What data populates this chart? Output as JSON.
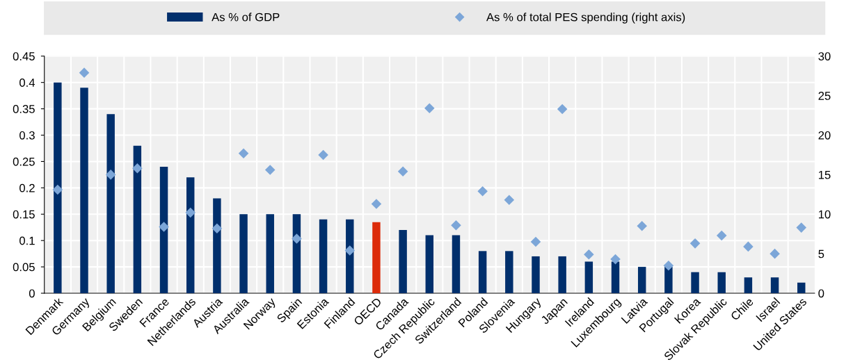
{
  "chart_data": {
    "type": "bar",
    "categories": [
      "Denmark",
      "Germany",
      "Belgium",
      "Sweden",
      "France",
      "Netherlands",
      "Austria",
      "Australia",
      "Norway",
      "Spain",
      "Estonia",
      "Finland",
      "OECD",
      "Canada",
      "Czech Republic",
      "Switzerland",
      "Poland",
      "Slovenia",
      "Hungary",
      "Japan",
      "Ireland",
      "Luxembourg",
      "Latvia",
      "Portugal",
      "Korea",
      "Slovak Republic",
      "Chile",
      "Israel",
      "United States"
    ],
    "series": [
      {
        "name": "As % of GDP",
        "color": "#002f6c",
        "colors": [
          "#002f6c",
          "#002f6c",
          "#002f6c",
          "#002f6c",
          "#002f6c",
          "#002f6c",
          "#002f6c",
          "#002f6c",
          "#002f6c",
          "#002f6c",
          "#002f6c",
          "#002f6c",
          "#dc2b0a",
          "#002f6c",
          "#002f6c",
          "#002f6c",
          "#002f6c",
          "#002f6c",
          "#002f6c",
          "#002f6c",
          "#002f6c",
          "#002f6c",
          "#002f6c",
          "#002f6c",
          "#002f6c",
          "#002f6c",
          "#002f6c",
          "#002f6c",
          "#002f6c"
        ],
        "values": [
          0.4,
          0.39,
          0.34,
          0.28,
          0.24,
          0.22,
          0.18,
          0.15,
          0.15,
          0.15,
          0.14,
          0.14,
          0.135,
          0.12,
          0.11,
          0.11,
          0.08,
          0.08,
          0.07,
          0.07,
          0.06,
          0.06,
          0.05,
          0.05,
          0.04,
          0.04,
          0.03,
          0.03,
          0.02
        ]
      },
      {
        "name": "As % of total PES spending (right axis)",
        "type": "scatter",
        "axis": "y2",
        "marker": "diamond",
        "color": "#7ca6d8",
        "values": [
          13.1,
          27.9,
          15.0,
          15.8,
          8.4,
          10.2,
          8.2,
          17.7,
          15.6,
          6.9,
          17.5,
          5.4,
          11.3,
          15.4,
          23.4,
          8.6,
          12.9,
          11.8,
          6.5,
          23.3,
          4.9,
          4.3,
          8.5,
          3.5,
          6.3,
          7.3,
          5.9,
          5.0,
          8.3
        ]
      }
    ],
    "ylim": [
      0,
      0.45
    ],
    "yticks": [
      0,
      0.05,
      0.1,
      0.15,
      0.2,
      0.25,
      0.3,
      0.35,
      0.4,
      0.45
    ],
    "y2lim": [
      0,
      30
    ],
    "y2ticks": [
      0,
      5,
      10,
      15,
      20,
      25,
      30
    ],
    "grid": true,
    "legend": "top"
  }
}
